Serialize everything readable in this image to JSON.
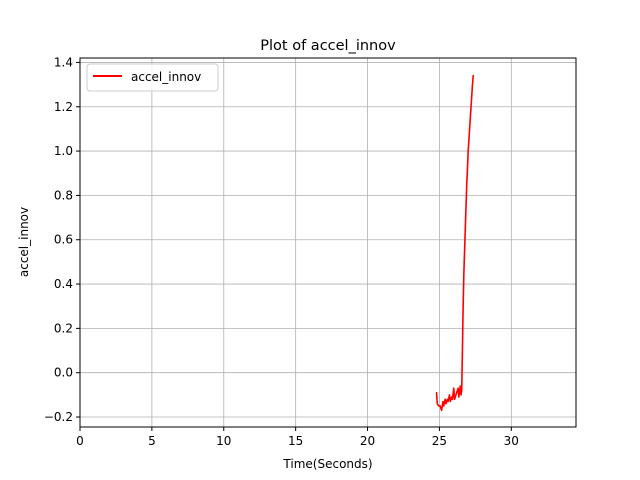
{
  "chart_data": {
    "type": "line",
    "title": "Plot of accel_innov",
    "xlabel": "Time(Seconds)",
    "ylabel": "accel_innov",
    "xlim": [
      0,
      34.5
    ],
    "ylim": [
      -0.245,
      1.42
    ],
    "xticks": [
      0,
      5,
      10,
      15,
      20,
      25,
      30
    ],
    "xtick_labels": [
      "0",
      "5",
      "10",
      "15",
      "20",
      "25",
      "30"
    ],
    "yticks": [
      -0.2,
      0.0,
      0.2,
      0.4,
      0.6,
      0.8,
      1.0,
      1.2,
      1.4
    ],
    "ytick_labels": [
      "−0.2",
      "0.0",
      "0.2",
      "0.4",
      "0.6",
      "0.8",
      "1.0",
      "1.2",
      "1.4"
    ],
    "grid": true,
    "legend_position": "top-left",
    "series": [
      {
        "name": "accel_innov",
        "color": "#ff0000",
        "x": [
          24.8,
          24.85,
          24.95,
          25.05,
          25.15,
          25.25,
          25.3,
          25.4,
          25.45,
          25.55,
          25.6,
          25.7,
          25.75,
          25.85,
          25.9,
          26.0,
          26.05,
          26.15,
          26.2,
          26.3,
          26.35,
          26.45,
          26.5,
          26.55,
          26.6,
          26.65,
          26.7,
          26.75,
          26.8,
          26.85,
          26.9,
          26.95,
          27.0,
          27.05,
          27.1,
          27.15,
          27.2,
          27.25,
          27.3,
          27.35
        ],
        "y": [
          -0.09,
          -0.14,
          -0.15,
          -0.15,
          -0.17,
          -0.13,
          -0.15,
          -0.12,
          -0.14,
          -0.12,
          -0.13,
          -0.1,
          -0.13,
          -0.11,
          -0.12,
          -0.07,
          -0.12,
          -0.1,
          -0.09,
          -0.07,
          -0.11,
          -0.06,
          -0.1,
          -0.08,
          0.1,
          0.3,
          0.45,
          0.55,
          0.65,
          0.75,
          0.85,
          0.92,
          1.0,
          1.05,
          1.1,
          1.15,
          1.2,
          1.25,
          1.3,
          1.34
        ]
      }
    ]
  }
}
